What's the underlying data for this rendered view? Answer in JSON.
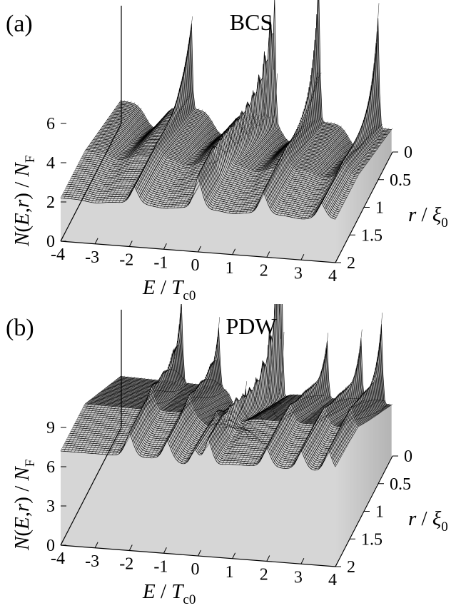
{
  "chart_data": [
    {
      "type": "surface",
      "panel_label": "(a)",
      "title": "BCS",
      "xlabel": "E / Tc0",
      "ylabel": "r / ξ0",
      "zlabel": "N(E,r) / NF",
      "xlim": [
        -4,
        4
      ],
      "ylim": [
        0,
        2
      ],
      "zlim": [
        0,
        6
      ],
      "x_ticks": [
        "-4",
        "-3",
        "-2",
        "-1",
        "0",
        "1",
        "2",
        "3",
        "4"
      ],
      "y_ticks": [
        "0",
        "0.5",
        "1",
        "1.5",
        "2"
      ],
      "z_ticks": [
        "0",
        "2",
        "4",
        "6"
      ],
      "background_level": 2.2,
      "ridges": [
        {
          "E0": -1.92,
          "E1": -1.85,
          "peak": 8.6,
          "base": 2.3
        },
        {
          "E0": 0.55,
          "E1": 0.0,
          "peak": 10.6,
          "base": 3.2
        },
        {
          "E0": 1.85,
          "E1": 1.9,
          "peak": 10.4,
          "base": 2.6
        },
        {
          "E0": 3.6,
          "E1": 3.6,
          "peak": 8.4,
          "base": 2.2
        }
      ],
      "core_dip_E": [
        -3.0,
        -1.0,
        1.0,
        3.0
      ]
    },
    {
      "type": "surface",
      "panel_label": "(b)",
      "title": "PDW",
      "xlabel": "E / Tc0",
      "ylabel": "r / ξ0",
      "zlabel": "N(E,r) / NF",
      "xlim": [
        -4,
        4
      ],
      "ylim": [
        0,
        2
      ],
      "zlim": [
        0,
        9
      ],
      "x_ticks": [
        "-4",
        "-3",
        "-2",
        "-1",
        "0",
        "1",
        "2",
        "3",
        "4"
      ],
      "y_ticks": [
        "0",
        "0.5",
        "1",
        "1.5",
        "2"
      ],
      "z_ticks": [
        "0",
        "3",
        "6",
        "9"
      ],
      "background_level": 7.2,
      "ridges": [
        {
          "E0": -2.2,
          "E1": -2.0,
          "peak": 12.5,
          "base": 6.4
        },
        {
          "E0": -1.1,
          "E1": -0.9,
          "peak": 10.2,
          "base": 6.0
        },
        {
          "E0": -0.3,
          "E1": -0.1,
          "peak": 9.6,
          "base": 5.8
        },
        {
          "E0": 0.75,
          "E1": 0.3,
          "peak": 23.5,
          "base": 6.8
        },
        {
          "E0": 2.1,
          "E1": 2.0,
          "peak": 9.8,
          "base": 6.0
        },
        {
          "E0": 3.1,
          "E1": 3.0,
          "peak": 10.4,
          "base": 6.0
        },
        {
          "E0": 3.7,
          "E1": 3.8,
          "peak": 12.0,
          "base": 6.2
        }
      ],
      "core_dip_E": [
        -0.3,
        0.3
      ]
    }
  ]
}
